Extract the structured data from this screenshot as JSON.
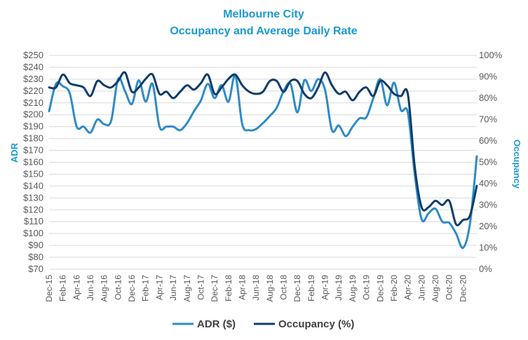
{
  "chart_data": {
    "type": "line",
    "title": "Melbourne City",
    "subtitle": "Occupancy and Average Daily Rate",
    "ylabel": "ADR",
    "y2label": "Occupancy",
    "ylim": [
      70,
      250
    ],
    "y_ticks": [
      "$70",
      "$80",
      "$90",
      "$100",
      "$110",
      "$120",
      "$130",
      "$140",
      "$150",
      "$160",
      "$170",
      "$180",
      "$190",
      "$200",
      "$210",
      "$220",
      "$230",
      "$240",
      "$250"
    ],
    "y2lim": [
      0,
      100
    ],
    "y2_ticks": [
      "0%",
      "10%",
      "20%",
      "30%",
      "40%",
      "50%",
      "60%",
      "70%",
      "80%",
      "90%",
      "100%"
    ],
    "x_ticks": [
      "Dec-15",
      "Feb-16",
      "Apr-16",
      "Jun-16",
      "Aug-16",
      "Oct-16",
      "Dec-16",
      "Feb-17",
      "Apr-17",
      "Jun-17",
      "Aug-17",
      "Oct-17",
      "Dec-17",
      "Feb-18",
      "Apr-18",
      "Jun-18",
      "Aug-18",
      "Oct-18",
      "Dec-18",
      "Feb-19",
      "Apr-19",
      "Jun-19",
      "Aug-19",
      "Oct-19",
      "Dec-19",
      "Feb-20",
      "Apr-20",
      "Jun-20",
      "Aug-20",
      "Oct-20",
      "Dec-20"
    ],
    "grid": true,
    "legend": "bottom",
    "series": [
      {
        "name": "ADR ($)",
        "axis": "left",
        "color": "#2e8bc6",
        "values": [
          203,
          226,
          224,
          218,
          190,
          190,
          185,
          196,
          192,
          195,
          230,
          220,
          209,
          229,
          211,
          226,
          190,
          190,
          190,
          187,
          193,
          203,
          212,
          226,
          214,
          225,
          211,
          233,
          192,
          187,
          188,
          193,
          199,
          206,
          220,
          226,
          202,
          229,
          220,
          230,
          221,
          187,
          191,
          182,
          190,
          197,
          198,
          214,
          230,
          208,
          227,
          204,
          202,
          150,
          112,
          117,
          121,
          110,
          109,
          100,
          88,
          108,
          165
        ]
      },
      {
        "name": "Occupancy (%)",
        "axis": "right",
        "color": "#0f3d6b",
        "values": [
          85,
          85,
          91,
          87,
          86,
          85,
          81,
          88,
          86,
          85,
          88,
          92,
          83,
          85,
          89,
          91,
          82,
          83,
          80,
          83,
          86,
          84,
          87,
          91,
          82,
          85,
          89,
          91,
          86,
          83,
          82,
          83,
          88,
          88,
          83,
          88,
          88,
          82,
          80,
          85,
          92,
          86,
          82,
          83,
          79,
          83,
          85,
          81,
          88,
          86,
          82,
          81,
          82,
          48,
          29,
          29,
          32,
          30,
          32,
          21,
          23,
          25,
          39
        ]
      }
    ]
  }
}
